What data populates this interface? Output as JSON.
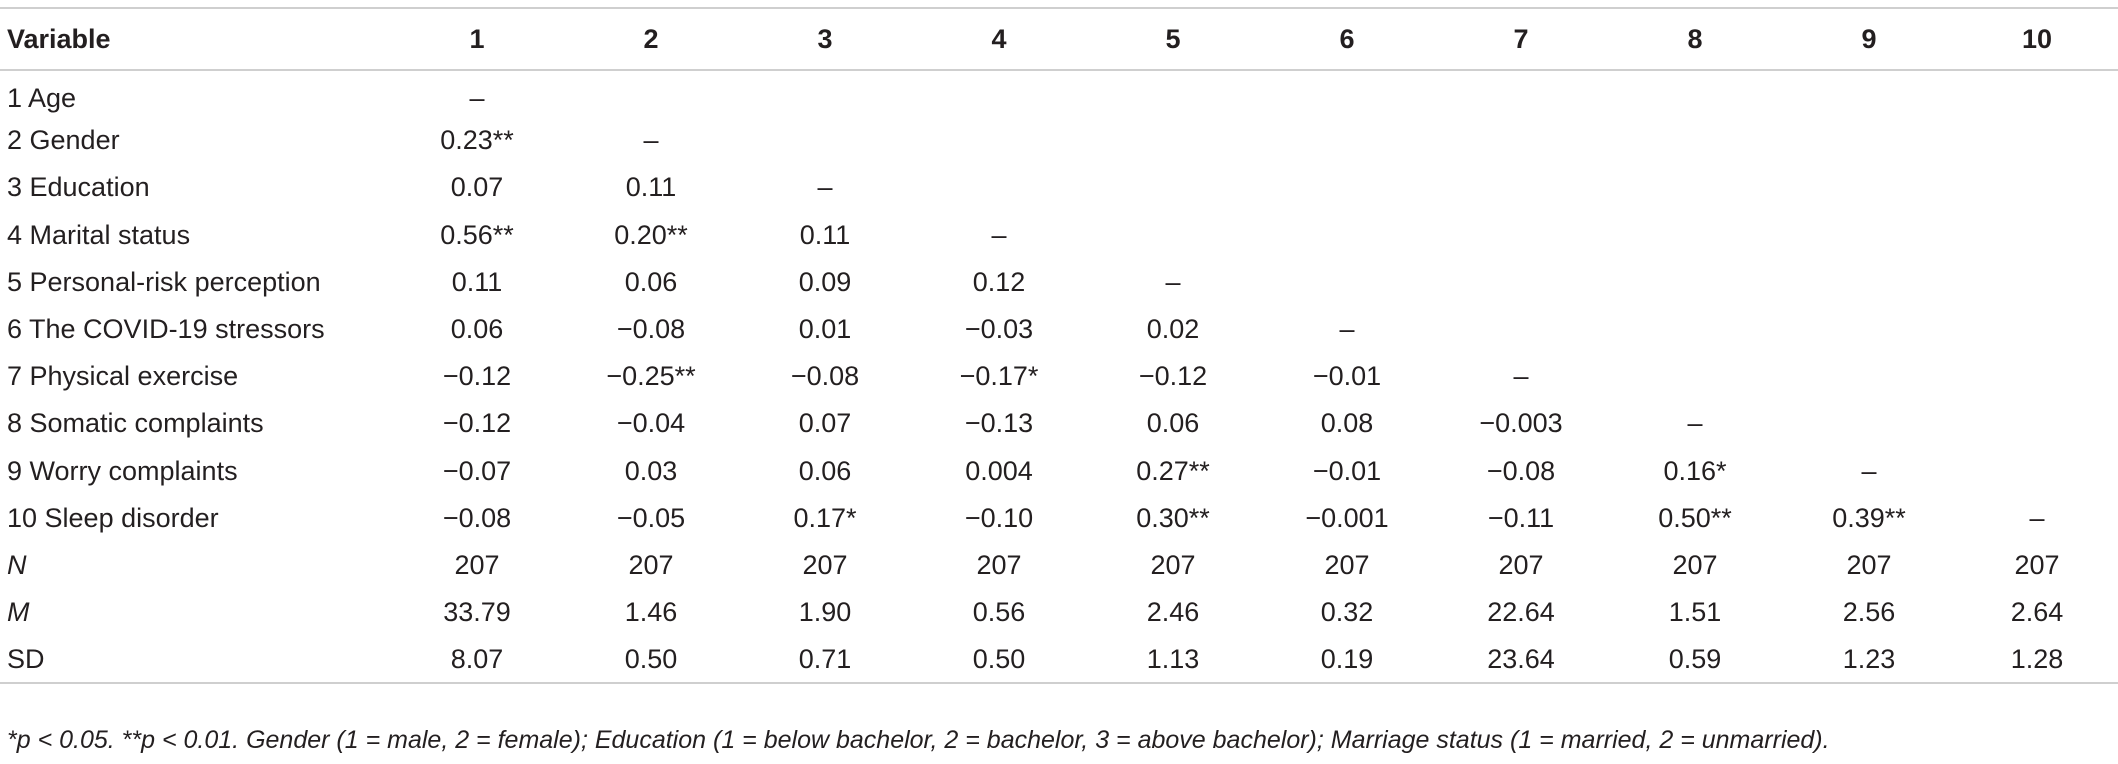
{
  "table": {
    "header": [
      "Variable",
      "1",
      "2",
      "3",
      "4",
      "5",
      "6",
      "7",
      "8",
      "9",
      "10"
    ],
    "rows": [
      [
        "1 Age",
        "–"
      ],
      [
        "2 Gender",
        "0.23**",
        "–"
      ],
      [
        "3 Education",
        "0.07",
        "0.11",
        "–"
      ],
      [
        "4 Marital status",
        "0.56**",
        "0.20**",
        "0.11",
        "–"
      ],
      [
        "5 Personal-risk perception",
        "0.11",
        "0.06",
        "0.09",
        "0.12",
        "–"
      ],
      [
        "6 The COVID-19 stressors",
        "0.06",
        "−0.08",
        "0.01",
        "−0.03",
        "0.02",
        "–"
      ],
      [
        "7 Physical exercise",
        "−0.12",
        "−0.25**",
        "−0.08",
        "−0.17*",
        "−0.12",
        "−0.01",
        "–"
      ],
      [
        "8 Somatic complaints",
        "−0.12",
        "−0.04",
        "0.07",
        "−0.13",
        "0.06",
        "0.08",
        "−0.003",
        "–"
      ],
      [
        "9 Worry complaints",
        "−0.07",
        "0.03",
        "0.06",
        "0.004",
        "0.27**",
        "−0.01",
        "−0.08",
        "0.16*",
        "–"
      ],
      [
        "10 Sleep disorder",
        "−0.08",
        "−0.05",
        "0.17*",
        "−0.10",
        "0.30**",
        "−0.001",
        "−0.11",
        "0.50**",
        "0.39**",
        "–"
      ],
      [
        "N",
        "207",
        "207",
        "207",
        "207",
        "207",
        "207",
        "207",
        "207",
        "207",
        "207"
      ],
      [
        "M",
        "33.79",
        "1.46",
        "1.90",
        "0.56",
        "2.46",
        "0.32",
        "22.64",
        "1.51",
        "2.56",
        "2.64"
      ],
      [
        "SD",
        "8.07",
        "0.50",
        "0.71",
        "0.50",
        "1.13",
        "0.19",
        "23.64",
        "0.59",
        "1.23",
        "1.28"
      ]
    ],
    "footnote": "*p < 0.05. **p < 0.01. Gender (1 = male, 2 = female); Education (1 = below bachelor, 2 = bachelor, 3 = above bachelor); Marriage status (1 = married, 2 = unmarried)."
  }
}
